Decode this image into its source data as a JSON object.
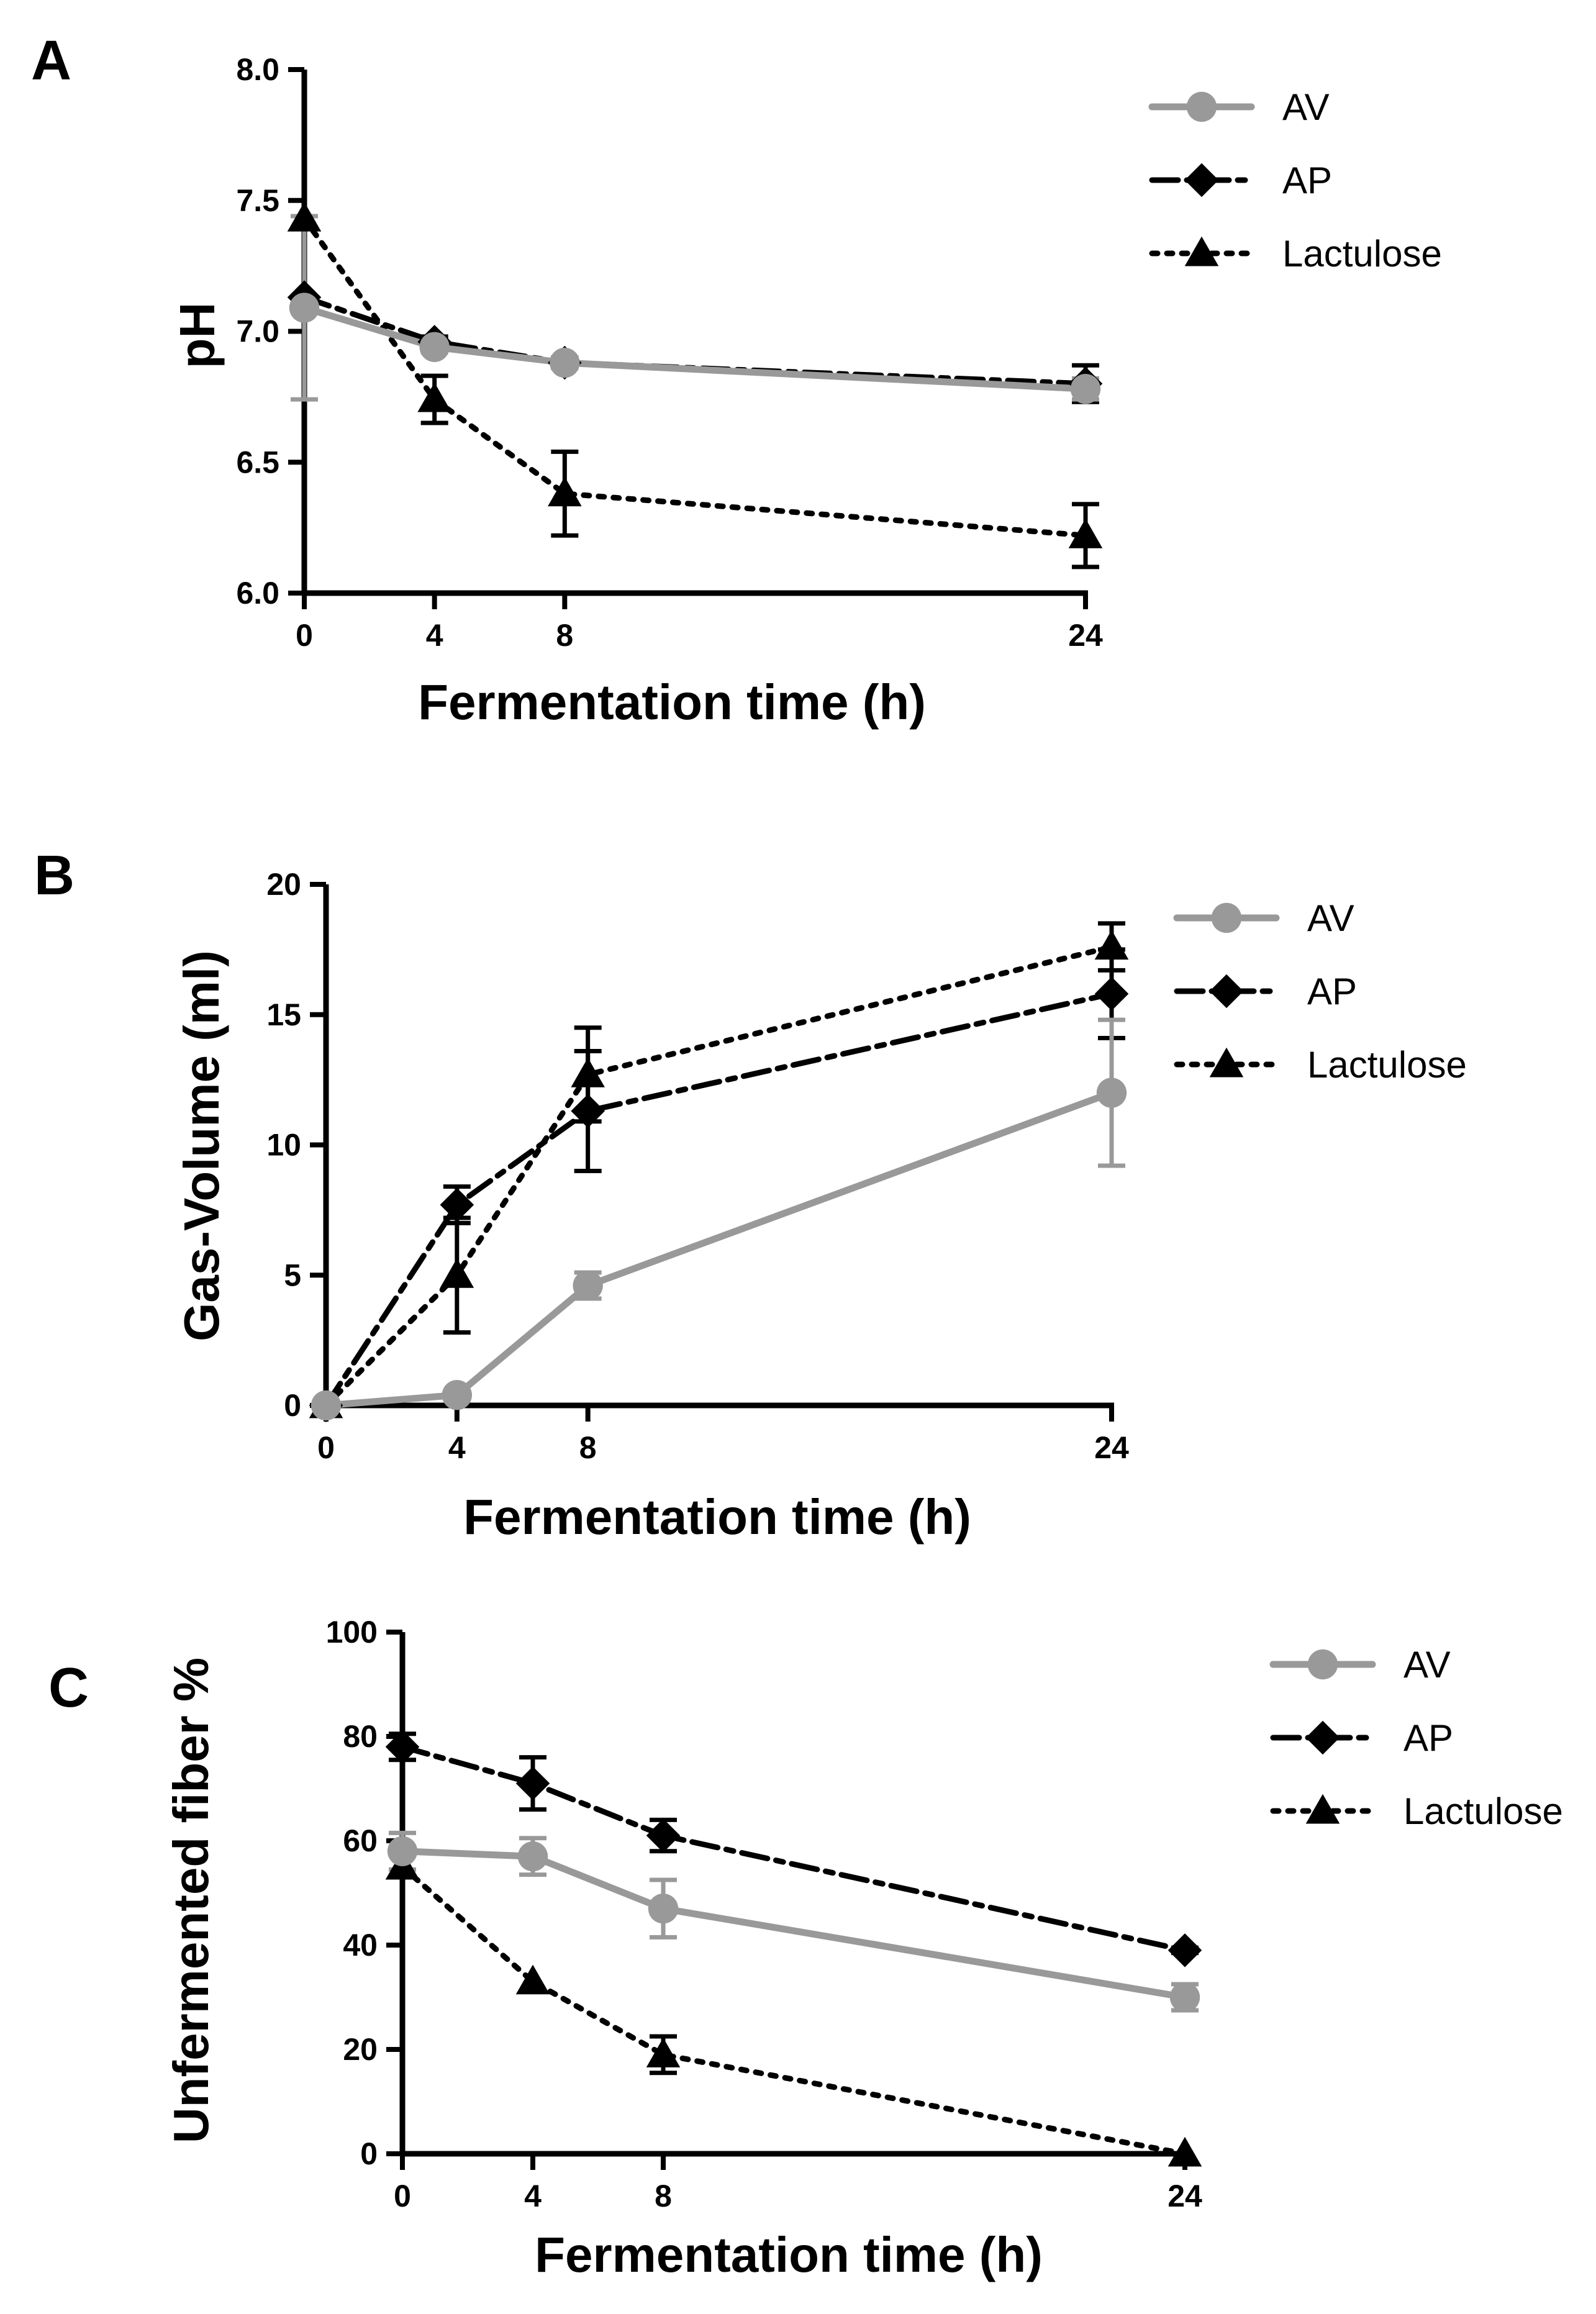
{
  "figure": {
    "panel_letters": [
      "A",
      "B",
      "C"
    ]
  },
  "chart_data": [
    {
      "panel": "A",
      "type": "line",
      "title": "",
      "xlabel": "Fermentation time (h)",
      "ylabel": "pH",
      "x": [
        0,
        4,
        8,
        24
      ],
      "xticks": [
        "0",
        "4",
        "8",
        "24"
      ],
      "xlim": [
        0,
        24
      ],
      "ylim": [
        6.0,
        8.0
      ],
      "yticks": [
        "6.0",
        "6.5",
        "7.0",
        "7.5",
        "8.0"
      ],
      "grid": false,
      "legend_position": "top-right",
      "series": [
        {
          "name": "AV",
          "color": "#999999",
          "marker": "circle",
          "line_style": "solid",
          "values": [
            7.09,
            6.94,
            6.88,
            6.78
          ],
          "errors": [
            0.35,
            0.02,
            0.02,
            0.04
          ]
        },
        {
          "name": "AP",
          "color": "#000000",
          "marker": "diamond",
          "line_style": "dashdot",
          "values": [
            7.13,
            6.96,
            6.88,
            6.8
          ],
          "errors": [
            0.0,
            0.02,
            0.02,
            0.07
          ]
        },
        {
          "name": "Lactulose",
          "color": "#000000",
          "marker": "triangle",
          "line_style": "dotted",
          "values": [
            7.43,
            6.74,
            6.38,
            6.22
          ],
          "errors": [
            0.0,
            0.09,
            0.16,
            0.12
          ]
        }
      ]
    },
    {
      "panel": "B",
      "type": "line",
      "title": "",
      "xlabel": "Fermentation time (h)",
      "ylabel": "Gas-Volume (ml)",
      "x": [
        0,
        4,
        8,
        24
      ],
      "xticks": [
        "0",
        "4",
        "8",
        "24"
      ],
      "xlim": [
        0,
        24
      ],
      "ylim": [
        0,
        20
      ],
      "yticks": [
        "0",
        "5",
        "10",
        "15",
        "20"
      ],
      "grid": false,
      "legend_position": "top-right",
      "series": [
        {
          "name": "AV",
          "color": "#999999",
          "marker": "circle",
          "line_style": "solid",
          "values": [
            0,
            0.4,
            4.6,
            12.0
          ],
          "errors": [
            0,
            0.1,
            0.5,
            2.8
          ]
        },
        {
          "name": "AP",
          "color": "#000000",
          "marker": "diamond",
          "line_style": "dashdot",
          "values": [
            0,
            7.7,
            11.3,
            15.8
          ],
          "errors": [
            0,
            0.7,
            2.3,
            1.7
          ]
        },
        {
          "name": "Lactulose",
          "color": "#000000",
          "marker": "triangle",
          "line_style": "dotted",
          "values": [
            0,
            5.0,
            12.7,
            17.6
          ],
          "errors": [
            0,
            2.2,
            1.8,
            0.9
          ]
        }
      ]
    },
    {
      "panel": "C",
      "type": "line",
      "title": "",
      "xlabel": "Fermentation time (h)",
      "ylabel": "Unfermented fiber %",
      "x": [
        0,
        4,
        8,
        24
      ],
      "xticks": [
        "0",
        "4",
        "8",
        "24"
      ],
      "xlim": [
        0,
        24
      ],
      "ylim": [
        0,
        100
      ],
      "yticks": [
        "0",
        "20",
        "40",
        "60",
        "80",
        "100"
      ],
      "grid": false,
      "legend_position": "top-right",
      "series": [
        {
          "name": "AV",
          "color": "#999999",
          "marker": "circle",
          "line_style": "solid",
          "values": [
            58,
            57,
            47,
            30
          ],
          "errors": [
            3.5,
            3.5,
            5.5,
            2.5
          ]
        },
        {
          "name": "AP",
          "color": "#000000",
          "marker": "diamond",
          "line_style": "dashdot",
          "values": [
            78,
            71,
            61,
            39
          ],
          "errors": [
            2.5,
            5.0,
            3.0,
            0.5
          ]
        },
        {
          "name": "Lactulose",
          "color": "#000000",
          "marker": "triangle",
          "line_style": "dotted",
          "values": [
            55,
            33,
            19,
            0
          ],
          "errors": [
            0,
            0,
            3.5,
            0
          ]
        }
      ]
    }
  ]
}
